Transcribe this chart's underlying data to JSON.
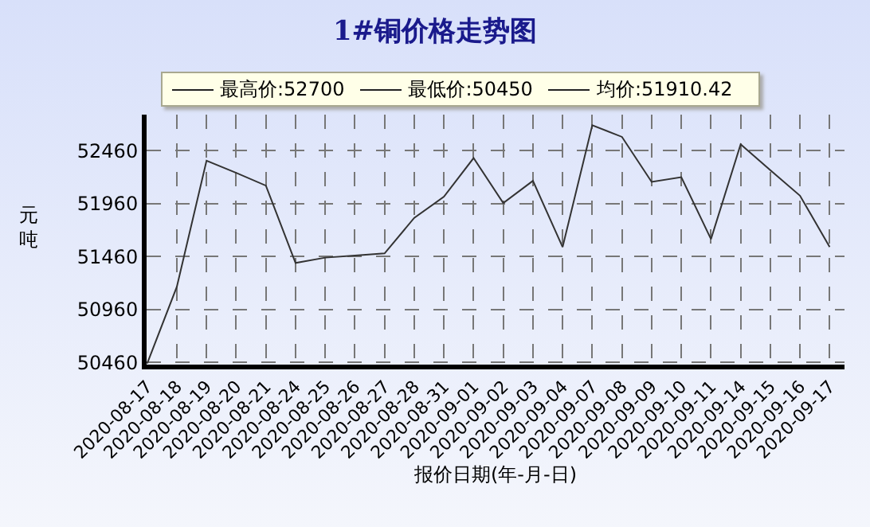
{
  "chart_data": {
    "type": "line",
    "title": "1#铜价格走势图",
    "xlabel": "报价日期(年-月-日)",
    "ylabel": "元吨",
    "annotations": [
      "最高价:52700",
      "最低价:50450",
      "均价:51910.42"
    ],
    "categories": [
      "2020-08-17",
      "2020-08-18",
      "2020-08-19",
      "2020-08-20",
      "2020-08-21",
      "2020-08-24",
      "2020-08-25",
      "2020-08-26",
      "2020-08-27",
      "2020-08-28",
      "2020-08-31",
      "2020-09-01",
      "2020-09-02",
      "2020-09-03",
      "2020-09-04",
      "2020-09-07",
      "2020-09-08",
      "2020-09-09",
      "2020-09-10",
      "2020-09-11",
      "2020-09-14",
      "2020-09-15",
      "2020-09-16",
      "2020-09-17"
    ],
    "series": [
      {
        "color": "#333333",
        "values": [
          50450,
          51175,
          52365,
          52250,
          52130,
          51400,
          51450,
          51470,
          51490,
          51825,
          52025,
          52390,
          51965,
          52175,
          51550,
          52700,
          52590,
          52165,
          52210,
          51625,
          52520,
          52275,
          52035,
          51550
        ]
      }
    ],
    "ylim": [
      50440,
      52800
    ],
    "yticks": [
      50460,
      50960,
      51460,
      51960,
      52460
    ],
    "grid": true,
    "marker": "none",
    "line_style": "solid"
  }
}
